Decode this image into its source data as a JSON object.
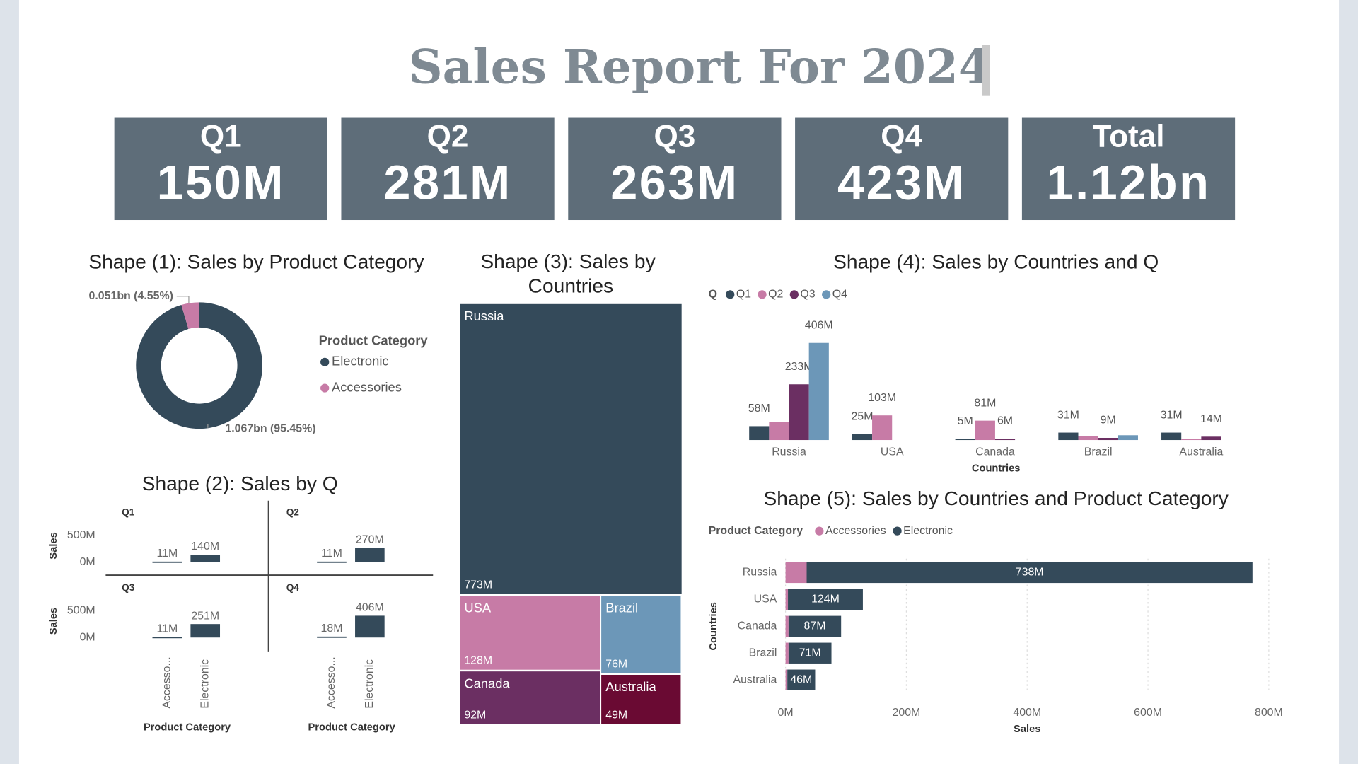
{
  "header": {
    "title": "Sales Report For 2024"
  },
  "kpis": [
    {
      "label": "Q1",
      "value": "150M"
    },
    {
      "label": "Q2",
      "value": "281M"
    },
    {
      "label": "Q3",
      "value": "263M"
    },
    {
      "label": "Q4",
      "value": "423M"
    },
    {
      "label": "Total",
      "value": "1.12bn"
    }
  ],
  "chart_data": [
    {
      "type": "donut",
      "title": "Shape (1): Sales by Product Category",
      "legend_title": "Product Category",
      "legend": "right",
      "categories": [
        "Electronic",
        "Accessories"
      ],
      "values": [
        1.067,
        0.051
      ],
      "value_labels": [
        "1.067bn (95.45%)",
        "0.051bn (4.55%)"
      ],
      "colors": [
        "#344a5a",
        "#c77ba6"
      ]
    },
    {
      "type": "small-multiples-bar",
      "title": "Shape (2): Sales by Q",
      "x_label": "Product Category",
      "y_label": "Sales",
      "categories": [
        "Accesso...",
        "Electronic"
      ],
      "color": "#344a5a",
      "ylim": [
        0,
        500
      ],
      "yticks": [
        {
          "value": 0,
          "label": "0M"
        },
        {
          "value": 500,
          "label": "500M"
        }
      ],
      "panels": [
        {
          "title": "Q1",
          "values": [
            11,
            140
          ],
          "value_labels": [
            "11M",
            "140M"
          ]
        },
        {
          "title": "Q2",
          "values": [
            11,
            270
          ],
          "value_labels": [
            "11M",
            "270M"
          ]
        },
        {
          "title": "Q3",
          "values": [
            11,
            251
          ],
          "value_labels": [
            "11M",
            "251M"
          ]
        },
        {
          "title": "Q4",
          "values": [
            18,
            406
          ],
          "value_labels": [
            "18M",
            "406M"
          ]
        }
      ]
    },
    {
      "type": "treemap",
      "title": "Shape (3): Sales by Countries",
      "categories": [
        "Russia",
        "USA",
        "Canada",
        "Brazil",
        "Australia"
      ],
      "values": [
        773,
        128,
        92,
        76,
        49
      ],
      "value_labels": [
        "773M",
        "128M",
        "92M",
        "76M",
        "49M"
      ],
      "colors": [
        "#344a5a",
        "#c77ba6",
        "#6b2f62",
        "#6c97b8",
        "#6a0a33"
      ]
    },
    {
      "type": "grouped-bar",
      "title": "Shape (4): Sales by Countries and Q",
      "legend_title": "Q",
      "legend": "top-left",
      "x_label": "Countries",
      "categories": [
        "Russia",
        "USA",
        "Canada",
        "Brazil",
        "Australia"
      ],
      "ylim": [
        0,
        420
      ],
      "series": [
        {
          "name": "Q1",
          "color": "#344a5a",
          "values": [
            58,
            25,
            5,
            31,
            31
          ],
          "value_labels": [
            "58M",
            "25M",
            "5M",
            "31M",
            "31M"
          ]
        },
        {
          "name": "Q2",
          "color": "#c77ba6",
          "values": [
            76,
            103,
            81,
            16,
            4
          ],
          "value_labels": [
            null,
            "103M",
            "81M",
            null,
            null
          ]
        },
        {
          "name": "Q3",
          "color": "#6b2f62",
          "values": [
            233,
            0,
            6,
            9,
            14
          ],
          "value_labels": [
            "233M",
            null,
            "6M",
            "9M",
            "14M"
          ]
        },
        {
          "name": "Q4",
          "color": "#6c97b8",
          "values": [
            406,
            0,
            0,
            20,
            0
          ],
          "value_labels": [
            "406M",
            null,
            null,
            null,
            null
          ]
        }
      ]
    },
    {
      "type": "stacked-barh",
      "title": "Shape (5): Sales by Countries and Product Category",
      "legend_title": "Product Category",
      "legend": "top-left",
      "x_label": "Sales",
      "y_label": "Countries",
      "grid": true,
      "categories": [
        "Russia",
        "USA",
        "Canada",
        "Brazil",
        "Australia"
      ],
      "xlim": [
        0,
        800
      ],
      "xticks": [
        {
          "value": 0,
          "label": "0M"
        },
        {
          "value": 200,
          "label": "200M"
        },
        {
          "value": 400,
          "label": "400M"
        },
        {
          "value": 600,
          "label": "600M"
        },
        {
          "value": 800,
          "label": "800M"
        }
      ],
      "series": [
        {
          "name": "Accessories",
          "color": "#c77ba6",
          "values": [
            35,
            4,
            5,
            5,
            3
          ]
        },
        {
          "name": "Electronic",
          "color": "#344a5a",
          "values": [
            738,
            124,
            87,
            71,
            46
          ],
          "value_labels": [
            "738M",
            "124M",
            "87M",
            "71M",
            "46M"
          ]
        }
      ]
    }
  ]
}
